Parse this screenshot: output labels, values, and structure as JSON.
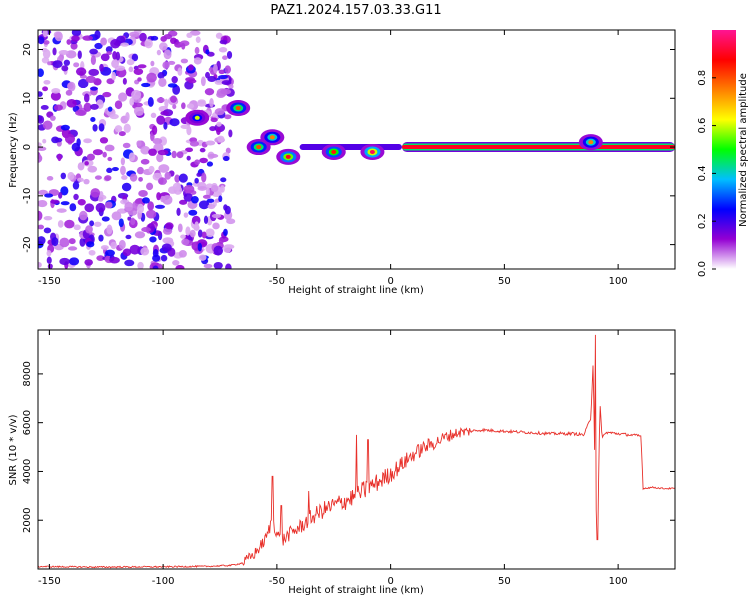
{
  "figure": {
    "title": "PAZ1.2024.157.03.33.G11"
  },
  "chart_data": [
    {
      "type": "heatmap",
      "xlabel": "Height of straight line (km)",
      "ylabel": "Frequency (Hz)",
      "xlim": [
        -155,
        125
      ],
      "ylim": [
        -25,
        24
      ],
      "xticks": [
        -150,
        -100,
        -50,
        0,
        50,
        100
      ],
      "yticks": [
        -20,
        -10,
        0,
        10,
        20
      ],
      "colorbar": {
        "label": "Normalized spectral amplitude",
        "range": [
          0,
          1
        ],
        "ticks": [
          0.0,
          0.2,
          0.4,
          0.6,
          0.8
        ],
        "colors": [
          "#ffffff",
          "#9400d3",
          "#0000ff",
          "#00bfff",
          "#00ff00",
          "#ffff00",
          "#ff7f00",
          "#ff0000",
          "#ff1493"
        ]
      },
      "features": {
        "noise_region_x": [
          -155,
          -70
        ],
        "carrier_frequency_hz": 0,
        "strong_carrier_from_x": 5,
        "clusters": [
          {
            "x": -85,
            "y": 6,
            "amp": 0.25
          },
          {
            "x": -67,
            "y": 8,
            "amp": 0.45
          },
          {
            "x": -58,
            "y": 0,
            "amp": 0.45
          },
          {
            "x": -52,
            "y": 2,
            "amp": 0.4
          },
          {
            "x": -45,
            "y": -2,
            "amp": 0.55
          },
          {
            "x": -25,
            "y": -1,
            "amp": 0.5
          },
          {
            "x": -8,
            "y": -1,
            "amp": 0.6
          },
          {
            "x": 88,
            "y": 1,
            "amp": 0.4
          }
        ]
      }
    },
    {
      "type": "line",
      "xlabel": "Height of straight line (km)",
      "ylabel": "SNR (10 * v/v)",
      "xlim": [
        -155,
        125
      ],
      "ylim": [
        0,
        9800
      ],
      "xticks": [
        -150,
        -100,
        -50,
        0,
        50,
        100
      ],
      "yticks": [
        2000,
        4000,
        6000,
        8000
      ],
      "color": "#e8302a",
      "series": [
        {
          "x": [
            -155,
            -130,
            -100,
            -80,
            -70,
            -65,
            -60,
            -55,
            -52,
            -50,
            -48,
            -45,
            -40,
            -35,
            -30,
            -25,
            -20,
            -15,
            -12,
            -10,
            -5,
            0,
            5,
            10,
            15,
            20,
            25,
            30,
            35,
            40,
            50,
            60,
            70,
            80,
            85,
            88,
            89,
            90,
            91,
            92,
            93,
            95,
            100,
            105,
            110,
            111,
            115,
            120,
            125
          ],
          "y": [
            100,
            80,
            90,
            110,
            150,
            250,
            600,
            1200,
            2000,
            1500,
            1100,
            1400,
            1700,
            2100,
            2400,
            2600,
            2800,
            3000,
            3200,
            3300,
            3600,
            3900,
            4300,
            4700,
            5000,
            5200,
            5450,
            5600,
            5650,
            5700,
            5650,
            5600,
            5550,
            5550,
            5500,
            6200,
            8500,
            3000,
            1500,
            6800,
            5400,
            5600,
            5550,
            5500,
            5450,
            3300,
            3350,
            3300,
            3300
          ]
        }
      ],
      "spikes": [
        {
          "x": -52,
          "y": 3800
        },
        {
          "x": -48,
          "y": 2600
        },
        {
          "x": -36,
          "y": 3200
        },
        {
          "x": -15,
          "y": 5500
        },
        {
          "x": -10,
          "y": 5300
        },
        {
          "x": 90,
          "y": 9600
        },
        {
          "x": 91,
          "y": 1200
        }
      ]
    }
  ]
}
